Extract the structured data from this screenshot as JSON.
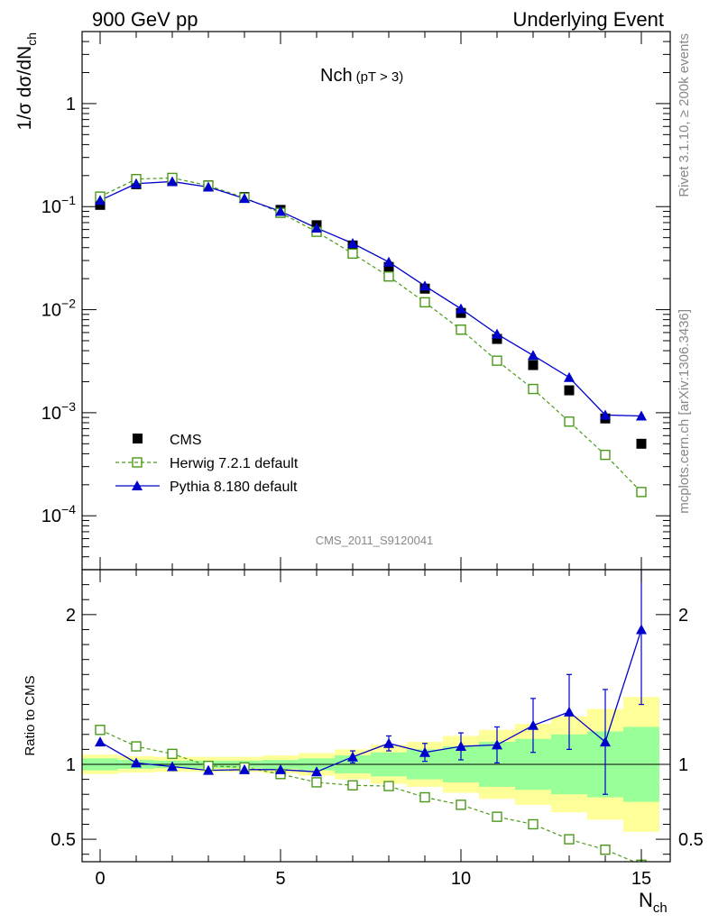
{
  "header": {
    "left": "900 GeV pp",
    "right": "Underlying Event"
  },
  "side": {
    "rivet": "Rivet 3.1.10, ≥ 200k events",
    "mcplots": "mcplots.cern.ch [arXiv:1306.3436]"
  },
  "chart_data": [
    {
      "type": "scatter",
      "title_main": "Nch",
      "title_sub": "(pT >  3)",
      "ylabel_main": "1/σ dσ/dN",
      "ylabel_sub": "ch",
      "xlabel_main": "N",
      "xlabel_sub": "ch",
      "yscale": "log",
      "xlim": [
        -0.5,
        15.8
      ],
      "ylim": [
        3e-05,
        5
      ],
      "yticks": [
        {
          "value": 0.0001,
          "base": "10",
          "exp": "−4"
        },
        {
          "value": 0.001,
          "base": "10",
          "exp": "−3"
        },
        {
          "value": 0.01,
          "base": "10",
          "exp": "−2"
        },
        {
          "value": 0.1,
          "base": "10",
          "exp": "−1"
        },
        {
          "value": 1,
          "base": "1",
          "exp": ""
        }
      ],
      "watermark": "CMS_2011_S9120041",
      "legend_position": "lower-left",
      "x": [
        0,
        1,
        2,
        3,
        4,
        5,
        6,
        7,
        8,
        9,
        10,
        11,
        12,
        13,
        14,
        15
      ],
      "series": [
        {
          "name": "CMS",
          "color": "#000000",
          "marker": "filled-square",
          "values": [
            0.104,
            0.165,
            0.178,
            0.161,
            0.124,
            0.093,
            0.066,
            0.042,
            0.026,
            0.016,
            0.0093,
            0.0052,
            0.0029,
            0.00165,
            0.00088,
            0.0005
          ]
        },
        {
          "name": "Herwig 7.2.1 default",
          "color": "#4a9a1a",
          "marker": "open-square",
          "line": "dashed",
          "values": [
            0.125,
            0.185,
            0.19,
            0.16,
            0.122,
            0.087,
            0.057,
            0.035,
            0.021,
            0.0118,
            0.0064,
            0.0032,
            0.0017,
            0.00082,
            0.00039,
            0.00017
          ]
        },
        {
          "name": "Pythia 8.180 default",
          "color": "#0000cc",
          "marker": "filled-triangle",
          "line": "solid",
          "values": [
            0.115,
            0.167,
            0.175,
            0.155,
            0.12,
            0.09,
            0.062,
            0.044,
            0.029,
            0.017,
            0.0102,
            0.0058,
            0.0036,
            0.0022,
            0.00095,
            0.00093
          ]
        }
      ]
    },
    {
      "type": "scatter",
      "ylabel": "Ratio to CMS",
      "xlabel_main": "N",
      "xlabel_sub": "ch",
      "xlim": [
        -0.5,
        15.8
      ],
      "ylim": [
        0.35,
        2.3
      ],
      "yticks": [
        "0.5",
        "1",
        "2"
      ],
      "xticks": [
        "0",
        "5",
        "10",
        "15"
      ],
      "x": [
        0,
        1,
        2,
        3,
        4,
        5,
        6,
        7,
        8,
        9,
        10,
        11,
        12,
        13,
        14,
        15
      ],
      "band_green_half_width": [
        0.04,
        0.03,
        0.025,
        0.025,
        0.025,
        0.03,
        0.04,
        0.06,
        0.08,
        0.1,
        0.12,
        0.15,
        0.17,
        0.2,
        0.22,
        0.25
      ],
      "band_yellow_half_width": [
        0.065,
        0.055,
        0.05,
        0.05,
        0.05,
        0.06,
        0.075,
        0.1,
        0.13,
        0.15,
        0.19,
        0.23,
        0.27,
        0.32,
        0.37,
        0.45
      ],
      "series": [
        {
          "name": "Herwig 7.2.1 default",
          "color": "#4a9a1a",
          "values": [
            1.23,
            1.12,
            1.07,
            0.99,
            0.98,
            0.935,
            0.88,
            0.86,
            0.855,
            0.78,
            0.73,
            0.65,
            0.6,
            0.5,
            0.43,
            0.33
          ]
        },
        {
          "name": "Pythia 8.180 default",
          "color": "#0000cc",
          "values": [
            1.15,
            1.01,
            0.985,
            0.96,
            0.965,
            0.965,
            0.95,
            1.05,
            1.14,
            1.08,
            1.12,
            1.13,
            1.26,
            1.35,
            1.15,
            1.9
          ]
        }
      ],
      "pythia_err": [
        0.015,
        0.012,
        0.01,
        0.01,
        0.01,
        0.012,
        0.02,
        0.04,
        0.05,
        0.06,
        0.09,
        0.12,
        0.18,
        0.25,
        0.35,
        0.5
      ]
    }
  ]
}
